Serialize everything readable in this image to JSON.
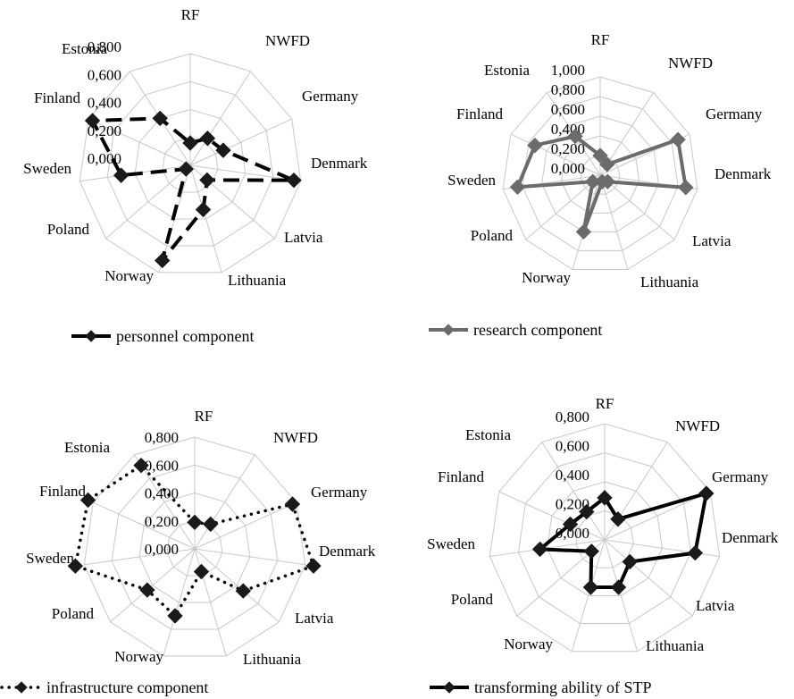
{
  "chart_data": [
    {
      "type": "radar",
      "categories": [
        "RF",
        "NWFD",
        "Germany",
        "Denmark",
        "Latvia",
        "Lithuania",
        "Norway",
        "Poland",
        "Sweden",
        "Finland",
        "Estonia"
      ],
      "ylim": [
        0,
        0.8
      ],
      "ticks": [
        "0,000",
        "0,200",
        "0,400",
        "0,600",
        "0,800"
      ],
      "grid": true,
      "legend_position": "bottom",
      "series": [
        {
          "name": "personnel component",
          "values": [
            0.16,
            0.23,
            0.26,
            0.75,
            0.16,
            0.33,
            0.71,
            0.04,
            0.5,
            0.77,
            0.4
          ],
          "color": "#000000"
        }
      ]
    },
    {
      "type": "radar",
      "categories": [
        "RF",
        "NWFD",
        "Germany",
        "Denmark",
        "Latvia",
        "Lithuania",
        "Norway",
        "Poland",
        "Sweden",
        "Finland",
        "Estonia"
      ],
      "ylim": [
        0,
        1.0
      ],
      "ticks": [
        "0,000",
        "0,200",
        "0,400",
        "0,600",
        "0,800",
        "1,000"
      ],
      "grid": true,
      "legend_position": "bottom",
      "series": [
        {
          "name": "research component",
          "values": [
            0.2,
            0.13,
            0.87,
            0.88,
            0.1,
            0.07,
            0.6,
            0.1,
            0.85,
            0.73,
            0.47
          ],
          "color": "#6b6b6b"
        }
      ]
    },
    {
      "type": "radar",
      "categories": [
        "RF",
        "NWFD",
        "Germany",
        "Denmark",
        "Latvia",
        "Lithuania",
        "Norway",
        "Poland",
        "Sweden",
        "Finland",
        "Estonia"
      ],
      "ylim": [
        0,
        0.8
      ],
      "ticks": [
        "0,000",
        "0,200",
        "0,400",
        "0,600",
        "0,800"
      ],
      "grid": true,
      "legend_position": "bottom",
      "series": [
        {
          "name": "infrastructure component",
          "values": [
            0.19,
            0.21,
            0.77,
            0.86,
            0.46,
            0.17,
            0.5,
            0.45,
            0.93,
            0.84,
            0.71
          ],
          "color": "#000000"
        }
      ]
    },
    {
      "type": "radar",
      "categories": [
        "RF",
        "NWFD",
        "Germany",
        "Denmark",
        "Latvia",
        "Lithuania",
        "Norway",
        "Poland",
        "Sweden",
        "Finland",
        "Estonia"
      ],
      "ylim": [
        0,
        0.8
      ],
      "ticks": [
        "0,000",
        "0,200",
        "0,400",
        "0,600",
        "0,800"
      ],
      "grid": true,
      "legend_position": "bottom",
      "series": [
        {
          "name": "transforming ability of STP",
          "values": [
            0.29,
            0.17,
            0.77,
            0.63,
            0.23,
            0.34,
            0.34,
            0.12,
            0.45,
            0.26,
            0.23
          ],
          "color": "#000000"
        }
      ]
    }
  ]
}
